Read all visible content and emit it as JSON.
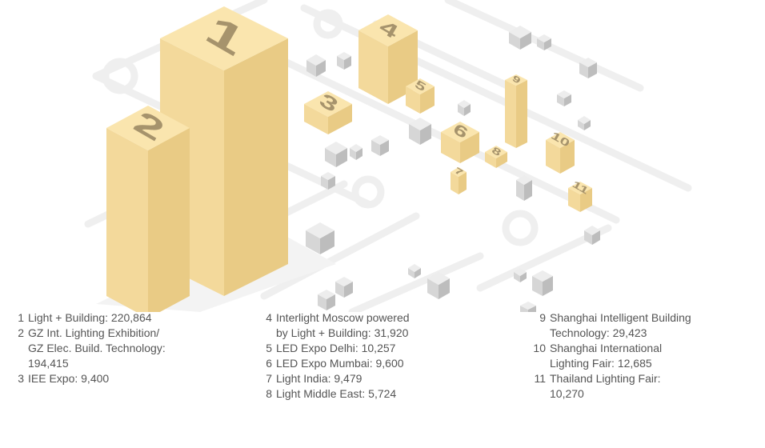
{
  "items": [
    {
      "number": "1",
      "lines": [
        "Light + Building: 220,864"
      ]
    },
    {
      "number": "2",
      "lines": [
        "GZ Int. Lighting Exhibition/",
        "GZ Elec. Build. Technology:",
        "194,415"
      ]
    },
    {
      "number": "3",
      "lines": [
        "IEE Expo: 9,400"
      ]
    },
    {
      "number": "4",
      "lines": [
        "Interlight Moscow powered",
        "by Light + Building: 31,920"
      ]
    },
    {
      "number": "5",
      "lines": [
        "LED Expo Delhi: 10,257"
      ]
    },
    {
      "number": "6",
      "lines": [
        "LED Expo Mumbai: 9,600"
      ]
    },
    {
      "number": "7",
      "lines": [
        "Light India: 9,479"
      ]
    },
    {
      "number": "8",
      "lines": [
        "Light Middle East: 5,724"
      ]
    },
    {
      "number": "9",
      "lines": [
        "Shanghai Intelligent Building",
        "Technology: 29,423"
      ]
    },
    {
      "number": "10",
      "lines": [
        "Shanghai International",
        "Lighting Fair: 12,685"
      ]
    },
    {
      "number": "11",
      "lines": [
        "Thailand Lighting Fair:",
        "10,270"
      ]
    }
  ]
}
